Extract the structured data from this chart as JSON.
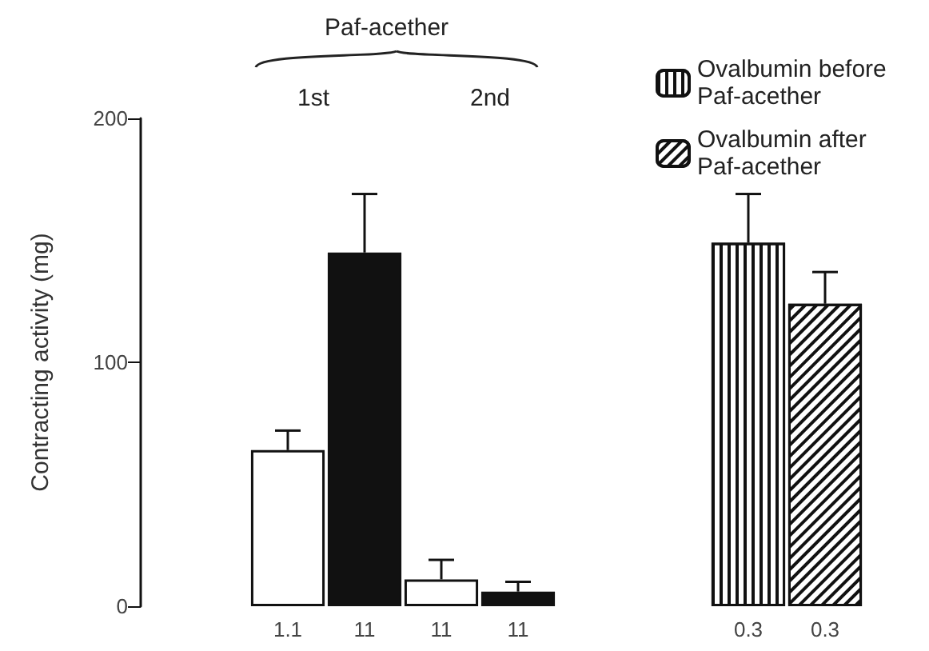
{
  "chart_data": {
    "type": "bar",
    "ylabel": "Contracting activity (mg)",
    "categories": [
      "1.1",
      "11",
      "11",
      "11",
      null,
      null,
      "0.3",
      "0.3"
    ],
    "series": [
      {
        "color": "#ffffff",
        "values": [
          64,
          null,
          11,
          null,
          null,
          null,
          null,
          null
        ],
        "errors": [
          8,
          null,
          8,
          null,
          null,
          null,
          null,
          null
        ]
      },
      {
        "color": "#111111",
        "values": [
          null,
          145,
          null,
          6,
          null,
          null,
          null,
          null
        ],
        "errors": [
          null,
          24,
          null,
          4,
          null,
          null,
          null,
          null
        ]
      },
      {
        "name": "Ovalbumin before Paf-acether",
        "color": "#ffffff",
        "values": [
          null,
          null,
          null,
          null,
          null,
          null,
          149,
          null
        ],
        "errors": [
          null,
          null,
          null,
          null,
          null,
          null,
          20,
          null
        ]
      },
      {
        "name": "Ovalbumin after Paf-acether",
        "color": "#ffffff",
        "values": [
          null,
          null,
          null,
          null,
          null,
          null,
          null,
          124
        ],
        "errors": [
          null,
          null,
          null,
          null,
          null,
          null,
          null,
          13
        ]
      }
    ],
    "ylim": [
      0,
      200
    ],
    "yticks": [
      0,
      100,
      200
    ],
    "grid": false,
    "legend": "top right",
    "annotations": [
      "Paf-acether",
      "1st",
      "2nd"
    ]
  }
}
